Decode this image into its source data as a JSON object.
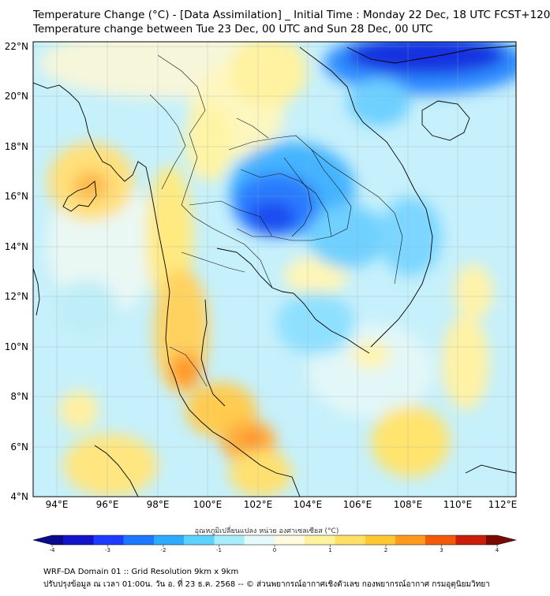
{
  "header": {
    "title_line1": "Temperature Change (°C) - [Data Assimilation] _ Initial Time : Monday 22 Dec, 18 UTC FCST+120",
    "title_line2": "Temperature change between Tue 23 Dec, 00 UTC and Sun 28 Dec, 00 UTC"
  },
  "map": {
    "lat_labels": [
      "22°N",
      "20°N",
      "18°N",
      "16°N",
      "14°N",
      "12°N",
      "10°N",
      "8°N",
      "6°N",
      "4°N"
    ],
    "lon_labels": [
      "94°E",
      "96°E",
      "98°E",
      "100°E",
      "102°E",
      "104°E",
      "106°E",
      "108°E",
      "110°E",
      "112°E"
    ]
  },
  "colorbar": {
    "title": "อุณหภูมิเปลี่ยนแปลง หน่วย องศาเซลเซียส (°C)",
    "tick_labels": [
      "-4",
      "-3",
      "-2",
      "-1",
      "0",
      "1",
      "2",
      "3",
      "4"
    ],
    "colors": [
      "#0a0a8c",
      "#1414c8",
      "#1e3cff",
      "#1e78ff",
      "#2eaaff",
      "#5ed2ff",
      "#a8eefa",
      "#e6fafc",
      "#fffbe0",
      "#fff3a0",
      "#ffe066",
      "#ffc832",
      "#ff9a1e",
      "#f05a0a",
      "#c81e0a",
      "#7a0a00"
    ]
  },
  "footer": {
    "line1": "WRF-DA Domain 01 :: Grid Resolution 9km x 9km",
    "line2": "ปรับปรุงข้อมูล ณ เวลา 01:00น. วัน อ. ที่ 23 ธ.ค. 2568 -- © ส่วนพยากรณ์อากาศเชิงตัวเลข กองพยากรณ์อากาศ กรมอุตุนิยมวิทยา"
  }
}
